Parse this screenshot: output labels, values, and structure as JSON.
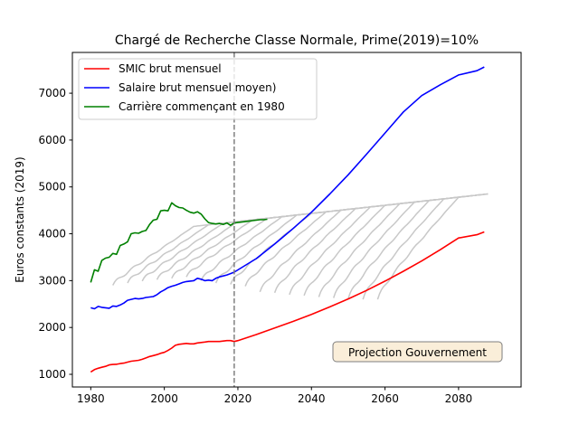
{
  "chart_data": {
    "type": "line",
    "title": "Chargé de Recherche Classe Normale, Prime(2019)=10%",
    "xlabel": "",
    "ylabel": "Euros constants (2019)",
    "xlim": [
      1975,
      2097
    ],
    "ylim": [
      730,
      7870
    ],
    "xticks": [
      1980,
      2000,
      2020,
      2040,
      2060,
      2080
    ],
    "yticks": [
      1000,
      2000,
      3000,
      4000,
      5000,
      6000,
      7000
    ],
    "legend_position": "upper left",
    "annotation": "Projection Gouvernement",
    "vline": {
      "x": 2019,
      "style": "dashed",
      "color": "#808080"
    },
    "series": [
      {
        "name": "SMIC brut mensuel",
        "color": "#ff0000",
        "x": [
          1980,
          1981,
          1982,
          1983,
          1984,
          1985,
          1986,
          1987,
          1988,
          1989,
          1990,
          1991,
          1992,
          1993,
          1994,
          1995,
          1996,
          1997,
          1998,
          1999,
          2000,
          2001,
          2002,
          2003,
          2004,
          2005,
          2006,
          2007,
          2008,
          2009,
          2010,
          2011,
          2012,
          2013,
          2014,
          2015,
          2016,
          2017,
          2018,
          2019,
          2020,
          2025,
          2030,
          2035,
          2040,
          2045,
          2050,
          2055,
          2060,
          2065,
          2070,
          2075,
          2080,
          2085,
          2087
        ],
        "y": [
          1050,
          1100,
          1130,
          1150,
          1170,
          1200,
          1210,
          1215,
          1230,
          1240,
          1260,
          1280,
          1290,
          1300,
          1320,
          1350,
          1380,
          1400,
          1420,
          1450,
          1470,
          1510,
          1560,
          1620,
          1640,
          1650,
          1660,
          1650,
          1650,
          1670,
          1680,
          1690,
          1700,
          1700,
          1700,
          1700,
          1710,
          1720,
          1720,
          1700,
          1720,
          1850,
          1990,
          2130,
          2280,
          2440,
          2610,
          2790,
          2990,
          3200,
          3420,
          3660,
          3910,
          3980,
          4040
        ]
      },
      {
        "name": "Salaire brut mensuel moyen)",
        "color": "#0000ff",
        "x": [
          1980,
          1981,
          1982,
          1983,
          1984,
          1985,
          1986,
          1987,
          1988,
          1989,
          1990,
          1991,
          1992,
          1993,
          1994,
          1995,
          1996,
          1997,
          1998,
          1999,
          2000,
          2001,
          2002,
          2003,
          2004,
          2005,
          2006,
          2007,
          2008,
          2009,
          2010,
          2011,
          2012,
          2013,
          2014,
          2015,
          2016,
          2017,
          2018,
          2019,
          2025,
          2030,
          2035,
          2040,
          2045,
          2050,
          2055,
          2060,
          2065,
          2070,
          2075,
          2080,
          2085,
          2087
        ],
        "y": [
          2420,
          2400,
          2450,
          2430,
          2420,
          2410,
          2460,
          2450,
          2480,
          2520,
          2580,
          2600,
          2620,
          2610,
          2620,
          2640,
          2650,
          2660,
          2700,
          2760,
          2800,
          2850,
          2880,
          2900,
          2930,
          2960,
          2980,
          2990,
          3000,
          3050,
          3030,
          3000,
          3010,
          3000,
          3050,
          3080,
          3100,
          3120,
          3150,
          3180,
          3470,
          3780,
          4110,
          4460,
          4850,
          5260,
          5700,
          6150,
          6600,
          6950,
          7180,
          7390,
          7480,
          7560
        ]
      },
      {
        "name": "Carrière commençant en 1980",
        "color": "#008000",
        "x": [
          1980,
          1981,
          1982,
          1983,
          1984,
          1985,
          1986,
          1987,
          1988,
          1989,
          1990,
          1991,
          1992,
          1993,
          1994,
          1995,
          1996,
          1997,
          1998,
          1999,
          2000,
          2001,
          2002,
          2003,
          2004,
          2005,
          2006,
          2007,
          2008,
          2009,
          2010,
          2011,
          2012,
          2013,
          2014,
          2015,
          2016,
          2017,
          2018,
          2019,
          2020,
          2021,
          2022,
          2023,
          2024,
          2025,
          2026,
          2027,
          2028
        ],
        "y": [
          2960,
          3230,
          3200,
          3430,
          3480,
          3500,
          3580,
          3560,
          3750,
          3780,
          3830,
          4000,
          4020,
          4010,
          4050,
          4070,
          4200,
          4290,
          4310,
          4490,
          4500,
          4490,
          4660,
          4600,
          4560,
          4550,
          4500,
          4460,
          4440,
          4470,
          4420,
          4320,
          4240,
          4220,
          4210,
          4220,
          4200,
          4230,
          4180,
          4230,
          4240,
          4250,
          4260,
          4270,
          4280,
          4290,
          4300,
          4300,
          4310
        ]
      }
    ],
    "grey_series": {
      "color": "#c8c8c8",
      "start_years": [
        1986,
        1990,
        1994,
        1998,
        2002,
        2006,
        2010,
        2014,
        2018,
        2022,
        2026,
        2030,
        2034,
        2038,
        2042,
        2046,
        2050,
        2054,
        2058
      ],
      "start_values": [
        2900,
        2950,
        2990,
        3020,
        3050,
        3080,
        3000,
        2950,
        2920,
        2880,
        2760,
        2740,
        2700,
        2680,
        2650,
        2630,
        2620,
        2600,
        2600
      ],
      "trend_x": [
        1984,
        2088
      ],
      "trend_y": [
        3950,
        4850
      ],
      "career_years": 40
    }
  }
}
